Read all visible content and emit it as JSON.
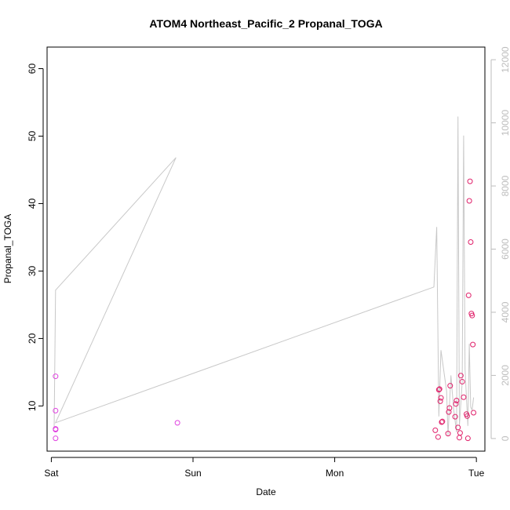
{
  "chart_data": {
    "type": "scatter",
    "title": "ATOM4 Northeast_Pacific_2 Propanal_TOGA",
    "xlabel": "Date",
    "ylabel": "Propanal_TOGA",
    "x_ticks": [
      "Sat",
      "Sun",
      "Mon",
      "Tue"
    ],
    "y_ticks": [
      "10",
      "20",
      "30",
      "40",
      "50",
      "60"
    ],
    "y2_ticks": [
      "0",
      "2000",
      "4000",
      "6000",
      "8000",
      "10000",
      "12000"
    ],
    "xlim": [
      -0.03,
      3.06
    ],
    "ylim": [
      3.3,
      63.2
    ],
    "y2lim": [
      -400,
      12400
    ],
    "colors": {
      "points_early": "#e040e0",
      "points_late": "#e0206a",
      "line": "#c8c8c8",
      "axis": "#000000",
      "right_axis": "#bdbdbd"
    },
    "series": [
      {
        "axis": "left",
        "style": "points",
        "x": [
          0.03,
          0.03,
          0.03,
          0.03,
          0.03,
          0.89,
          2.71,
          2.73,
          2.735,
          2.74,
          2.745,
          2.75,
          2.755,
          2.76,
          2.8,
          2.805,
          2.81,
          2.815,
          2.85,
          2.855,
          2.86,
          2.87,
          2.88,
          2.885,
          2.89,
          2.9,
          2.91,
          2.93,
          2.935,
          2.94,
          2.945,
          2.95,
          2.955,
          2.96,
          2.965,
          2.97,
          2.975,
          2.98
        ],
        "y": [
          14.4,
          9.3,
          6.6,
          6.5,
          5.2,
          7.5,
          6.4,
          5.4,
          12.4,
          12.5,
          10.7,
          11.2,
          7.6,
          7.7,
          5.9,
          9.1,
          9.7,
          13.0,
          8.4,
          10.3,
          10.8,
          6.8,
          5.3,
          6.0,
          14.5,
          13.6,
          11.3,
          8.8,
          8.5,
          5.2,
          26.4,
          40.4,
          43.3,
          34.3,
          23.7,
          23.4,
          19.1,
          9.0
        ]
      },
      {
        "axis": "right",
        "style": "line",
        "x": [
          0.02,
          0.03,
          0.88,
          0.03,
          2.7,
          2.72,
          2.735,
          2.75,
          2.79,
          2.8,
          2.82,
          2.84,
          2.86,
          2.87,
          2.88,
          2.9,
          2.91,
          2.92,
          2.94,
          2.95,
          2.96,
          2.97,
          2.98
        ],
        "y": [
          300,
          4700,
          8900,
          500,
          4800,
          6700,
          700,
          2800,
          1500,
          100,
          2000,
          900,
          200,
          10200,
          400,
          1800,
          9600,
          2200,
          400,
          3000,
          1000,
          900,
          1300
        ]
      }
    ]
  }
}
